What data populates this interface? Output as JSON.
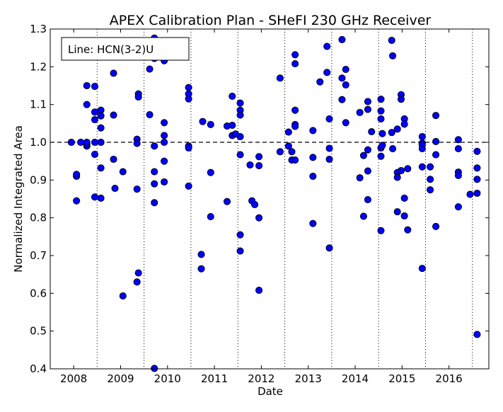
{
  "chart_data": {
    "type": "scatter",
    "title": "APEX Calibration Plan - SHeFI 230 GHz Receiver",
    "xlabel": "Date",
    "ylabel": "Normalized Integrated Area",
    "legend_text": "Line: HCN(3-2)U",
    "legend_placement": "top-left",
    "xlim": [
      2007.5,
      2016.85
    ],
    "ylim": [
      0.4,
      1.3
    ],
    "x_ticks": [
      2008,
      2009,
      2010,
      2011,
      2012,
      2013,
      2014,
      2015,
      2016
    ],
    "y_ticks": [
      0.4,
      0.5,
      0.6,
      0.7,
      0.8,
      0.9,
      1.0,
      1.1,
      1.2,
      1.3
    ],
    "y_tick_labels": [
      "0.4",
      "0.5",
      "0.6",
      "0.7",
      "0.8",
      "0.9",
      "1.0",
      "1.1",
      "1.2",
      "1.3"
    ],
    "reference_line": 1.0,
    "season_boundaries": [
      2008.5,
      2009.5,
      2010.5,
      2011.5,
      2012.5,
      2013.5,
      2014.5,
      2015.5,
      2016.5
    ],
    "marker_color": "#0000ff",
    "grid": false,
    "series": [
      {
        "points": [
          [
            2007.95,
            1.0
          ],
          [
            2008.06,
            0.91
          ],
          [
            2008.06,
            0.915
          ],
          [
            2008.06,
            0.845
          ],
          [
            2008.15,
            1.0
          ],
          [
            2008.28,
            0.99
          ],
          [
            2008.28,
            0.995
          ],
          [
            2008.28,
            1.0
          ],
          [
            2008.28,
            1.1
          ],
          [
            2008.28,
            1.15
          ],
          [
            2008.45,
            1.148
          ],
          [
            2008.45,
            1.08
          ],
          [
            2008.45,
            1.06
          ],
          [
            2008.45,
            1.0
          ],
          [
            2008.45,
            0.968
          ],
          [
            2008.45,
            0.855
          ],
          [
            2008.58,
            1.085
          ],
          [
            2008.58,
            1.07
          ],
          [
            2008.58,
            1.038
          ],
          [
            2008.58,
            1.0
          ],
          [
            2008.58,
            0.932
          ],
          [
            2008.58,
            0.852
          ],
          [
            2008.85,
            1.183
          ],
          [
            2008.85,
            1.072
          ],
          [
            2008.85,
            0.955
          ],
          [
            2008.88,
            0.878
          ],
          [
            2009.05,
            0.922
          ],
          [
            2009.05,
            0.593
          ],
          [
            2009.35,
            1.008
          ],
          [
            2009.35,
            0.997
          ],
          [
            2009.35,
            0.876
          ],
          [
            2009.35,
            0.63
          ],
          [
            2009.38,
            1.128
          ],
          [
            2009.38,
            1.12
          ],
          [
            2009.38,
            0.654
          ],
          [
            2009.62,
            1.194
          ],
          [
            2009.62,
            1.073
          ],
          [
            2009.72,
            1.276
          ],
          [
            2009.72,
            1.222
          ],
          [
            2009.72,
            0.99
          ],
          [
            2009.72,
            0.922
          ],
          [
            2009.72,
            0.89
          ],
          [
            2009.72,
            0.84
          ],
          [
            2009.72,
            0.401
          ],
          [
            2009.93,
            1.216
          ],
          [
            2009.93,
            1.052
          ],
          [
            2009.93,
            1.018
          ],
          [
            2009.93,
            1.0
          ],
          [
            2009.93,
            0.95
          ],
          [
            2009.93,
            0.895
          ],
          [
            2010.45,
            1.145
          ],
          [
            2010.45,
            1.128
          ],
          [
            2010.45,
            1.115
          ],
          [
            2010.45,
            0.99
          ],
          [
            2010.45,
            0.985
          ],
          [
            2010.45,
            0.884
          ],
          [
            2010.75,
            1.055
          ],
          [
            2010.72,
            0.703
          ],
          [
            2010.72,
            0.665
          ],
          [
            2010.92,
            1.047
          ],
          [
            2010.92,
            0.92
          ],
          [
            2010.92,
            0.803
          ],
          [
            2011.27,
            1.043
          ],
          [
            2011.27,
            0.843
          ],
          [
            2011.38,
            1.122
          ],
          [
            2011.38,
            1.045
          ],
          [
            2011.38,
            1.018
          ],
          [
            2011.45,
            1.022
          ],
          [
            2011.55,
            1.104
          ],
          [
            2011.55,
            1.085
          ],
          [
            2011.55,
            1.072
          ],
          [
            2011.55,
            1.015
          ],
          [
            2011.55,
            0.967
          ],
          [
            2011.55,
            0.755
          ],
          [
            2011.55,
            0.712
          ],
          [
            2011.76,
            0.94
          ],
          [
            2011.8,
            0.845
          ],
          [
            2011.86,
            0.835
          ],
          [
            2011.95,
            0.962
          ],
          [
            2011.95,
            0.938
          ],
          [
            2011.95,
            0.8
          ],
          [
            2011.95,
            0.608
          ],
          [
            2012.4,
            1.17
          ],
          [
            2012.4,
            0.975
          ],
          [
            2012.58,
            1.027
          ],
          [
            2012.58,
            0.99
          ],
          [
            2012.65,
            0.975
          ],
          [
            2012.65,
            0.953
          ],
          [
            2012.72,
            1.232
          ],
          [
            2012.72,
            1.208
          ],
          [
            2012.72,
            1.085
          ],
          [
            2012.72,
            1.047
          ],
          [
            2012.72,
            1.042
          ],
          [
            2012.72,
            0.953
          ],
          [
            2013.1,
            1.031
          ],
          [
            2013.1,
            0.96
          ],
          [
            2013.1,
            0.91
          ],
          [
            2013.1,
            0.785
          ],
          [
            2013.25,
            1.16
          ],
          [
            2013.4,
            1.254
          ],
          [
            2013.4,
            1.185
          ],
          [
            2013.45,
            1.062
          ],
          [
            2013.45,
            0.984
          ],
          [
            2013.45,
            0.955
          ],
          [
            2013.45,
            0.72
          ],
          [
            2013.72,
            1.272
          ],
          [
            2013.72,
            1.17
          ],
          [
            2013.72,
            1.113
          ],
          [
            2013.8,
            1.193
          ],
          [
            2013.8,
            1.152
          ],
          [
            2013.8,
            1.052
          ],
          [
            2014.1,
            1.079
          ],
          [
            2014.1,
            0.906
          ],
          [
            2014.18,
            0.965
          ],
          [
            2014.18,
            0.804
          ],
          [
            2014.27,
            1.108
          ],
          [
            2014.27,
            1.087
          ],
          [
            2014.27,
            0.98
          ],
          [
            2014.27,
            0.924
          ],
          [
            2014.27,
            0.848
          ],
          [
            2014.35,
            1.028
          ],
          [
            2014.55,
            1.114
          ],
          [
            2014.55,
            1.083
          ],
          [
            2014.55,
            1.062
          ],
          [
            2014.55,
            0.985
          ],
          [
            2014.55,
            0.963
          ],
          [
            2014.55,
            0.766
          ],
          [
            2014.58,
            1.023
          ],
          [
            2014.58,
            0.992
          ],
          [
            2014.78,
            1.27
          ],
          [
            2014.8,
            1.229
          ],
          [
            2014.78,
            1.026
          ],
          [
            2014.8,
            0.983
          ],
          [
            2014.9,
            1.035
          ],
          [
            2014.9,
            0.92
          ],
          [
            2014.9,
            0.907
          ],
          [
            2014.9,
            0.816
          ],
          [
            2014.98,
            1.126
          ],
          [
            2014.98,
            1.114
          ],
          [
            2014.98,
            0.925
          ],
          [
            2015.05,
            1.062
          ],
          [
            2015.05,
            1.048
          ],
          [
            2015.05,
            0.852
          ],
          [
            2015.05,
            0.805
          ],
          [
            2015.12,
            0.93
          ],
          [
            2015.12,
            0.768
          ],
          [
            2015.43,
            1.015
          ],
          [
            2015.43,
            0.998
          ],
          [
            2015.43,
            0.993
          ],
          [
            2015.43,
            0.983
          ],
          [
            2015.43,
            0.935
          ],
          [
            2015.43,
            0.666
          ],
          [
            2015.6,
            0.935
          ],
          [
            2015.6,
            0.902
          ],
          [
            2015.6,
            0.874
          ],
          [
            2015.72,
            1.071
          ],
          [
            2015.72,
            1.002
          ],
          [
            2015.72,
            0.967
          ],
          [
            2015.72,
            0.777
          ],
          [
            2016.2,
            1.007
          ],
          [
            2016.2,
            0.983
          ],
          [
            2016.2,
            0.921
          ],
          [
            2016.2,
            0.912
          ],
          [
            2016.2,
            0.829
          ],
          [
            2016.45,
            0.862
          ],
          [
            2016.6,
            0.976
          ],
          [
            2016.6,
            0.932
          ],
          [
            2016.6,
            0.902
          ],
          [
            2016.6,
            0.865
          ],
          [
            2016.6,
            0.491
          ]
        ]
      }
    ]
  }
}
